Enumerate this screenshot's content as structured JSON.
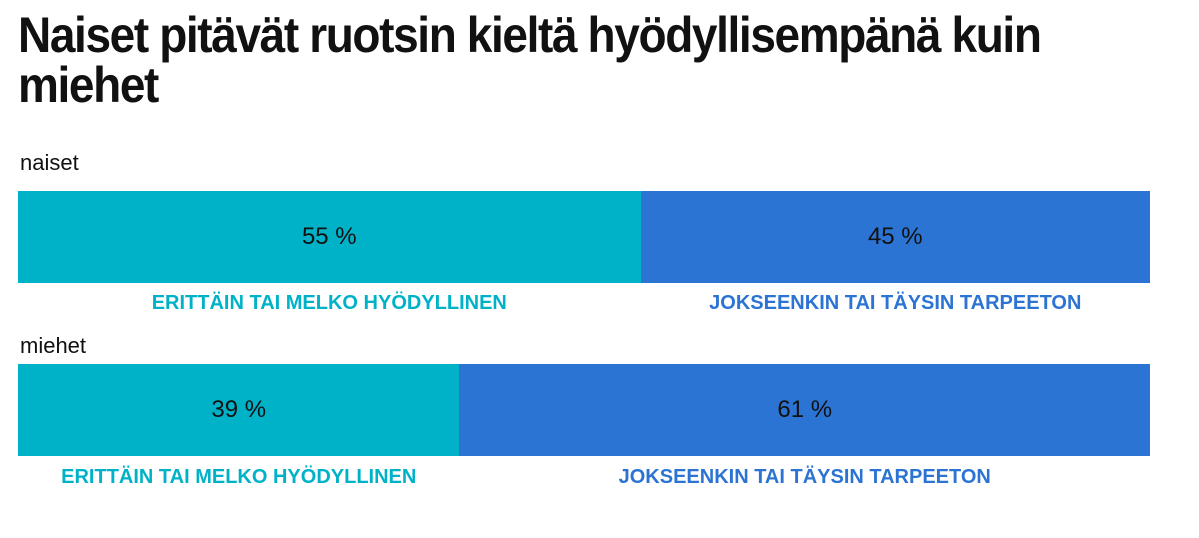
{
  "chart_data": {
    "type": "bar",
    "orientation": "horizontal",
    "stacked": true,
    "title": "Naiset pitävät ruotsin kieltä hyödyllisempänä kuin miehet",
    "unit": "%",
    "series": [
      {
        "name": "ERITTÄIN TAI MELKO HYÖDYLLINEN",
        "color": "#00B2C8"
      },
      {
        "name": "JOKSEENKIN TAI TÄYSIN TARPEETON",
        "color": "#2B74D3"
      }
    ],
    "groups": [
      {
        "label": "naiset",
        "values": [
          55,
          45
        ],
        "value_labels": [
          "55 %",
          "45 %"
        ],
        "category_labels": [
          "ERITTÄIN TAI MELKO HYÖDYLLINEN",
          "JOKSEENKIN TAI TÄYSIN TARPEETON"
        ]
      },
      {
        "label": "miehet",
        "values": [
          39,
          61
        ],
        "value_labels": [
          "39 %",
          "61 %"
        ],
        "category_labels": [
          "ERITTÄIN TAI MELKO HYÖDYLLINEN",
          "JOKSEENKIN TAI TÄYSIN TARPEETON"
        ]
      }
    ]
  }
}
